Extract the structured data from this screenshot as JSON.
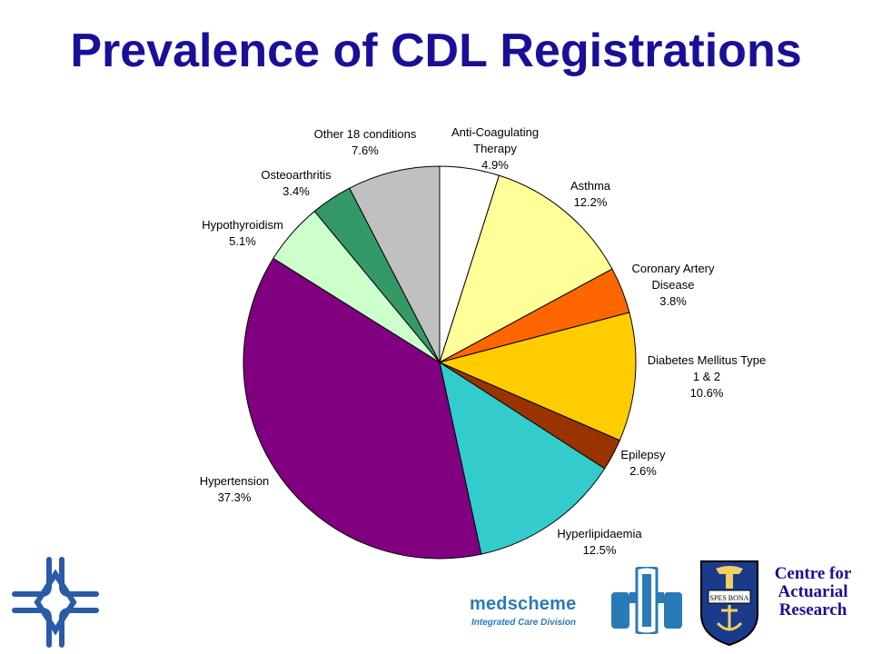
{
  "title": "Prevalence of CDL Registrations",
  "chart_data": {
    "type": "pie",
    "title": "Prevalence of CDL Registrations",
    "slices": [
      {
        "label_lines": [
          "Anti-Coagulating",
          "Therapy"
        ],
        "percent_label": "4.9%",
        "value": 4.9,
        "color": "#ffffff"
      },
      {
        "label_lines": [
          "Asthma"
        ],
        "percent_label": "12.2%",
        "value": 12.2,
        "color": "#ffff99"
      },
      {
        "label_lines": [
          "Coronary Artery",
          "Disease"
        ],
        "percent_label": "3.8%",
        "value": 3.8,
        "color": "#ff6600"
      },
      {
        "label_lines": [
          "Diabetes Mellitus Type",
          "1 & 2"
        ],
        "percent_label": "10.6%",
        "value": 10.6,
        "color": "#ffcc00"
      },
      {
        "label_lines": [
          "Epilepsy"
        ],
        "percent_label": "2.6%",
        "value": 2.6,
        "color": "#993300"
      },
      {
        "label_lines": [
          "Hyperlipidaemia"
        ],
        "percent_label": "12.5%",
        "value": 12.5,
        "color": "#33cccc"
      },
      {
        "label_lines": [
          "Hypertension"
        ],
        "percent_label": "37.3%",
        "value": 37.3,
        "color": "#800080"
      },
      {
        "label_lines": [
          "Hypothyroidism"
        ],
        "percent_label": "5.1%",
        "value": 5.1,
        "color": "#ccffcc"
      },
      {
        "label_lines": [
          "Osteoarthritis"
        ],
        "percent_label": "3.4%",
        "value": 3.4,
        "color": "#339966"
      },
      {
        "label_lines": [
          "Other 18 conditions"
        ],
        "percent_label": "7.6%",
        "value": 7.6,
        "color": "#c0c0c0"
      }
    ],
    "start_angle_deg": 0,
    "direction": "clockwise",
    "legend": "none"
  },
  "logos": {
    "medscheme_name": "medscheme",
    "medscheme_subtitle": "Integrated Care Division",
    "car_lines": [
      "Centre for",
      "Actuarial",
      "Research"
    ],
    "crest_motto": "SPES BONA",
    "colors": {
      "title": "#1a0f99",
      "medscheme": "#2a7ab8",
      "cross": "#2a5aa8"
    }
  }
}
